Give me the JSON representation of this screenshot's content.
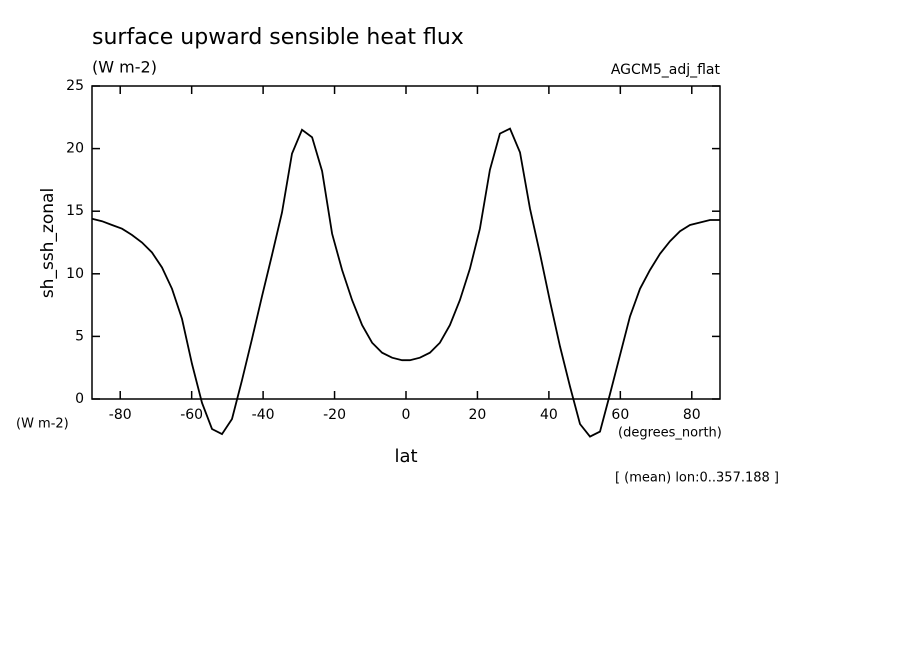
{
  "chart_data": {
    "type": "line",
    "title": "surface upward sensible heat flux",
    "subtitle": "(W m-2)",
    "annotation_right": "AGCM5_adj_flat",
    "y_label": "sh_ssh_zonal",
    "y_units": "(W m-2)",
    "x_label": "lat",
    "x_units": "(degrees_north)",
    "footnote": "[ (mean) lon:0..357.188 ]",
    "x": [
      -87.9,
      -85.1,
      -82.3,
      -79.5,
      -76.7,
      -73.9,
      -71.1,
      -68.3,
      -65.5,
      -62.7,
      -59.9,
      -57.1,
      -54.3,
      -51.5,
      -48.7,
      -45.9,
      -43.1,
      -40.3,
      -37.5,
      -34.7,
      -31.9,
      -29.1,
      -26.3,
      -23.5,
      -20.7,
      -17.9,
      -15.1,
      -12.3,
      -9.5,
      -6.7,
      -3.9,
      -1.1,
      1.1,
      3.9,
      6.7,
      9.5,
      12.3,
      15.1,
      17.9,
      20.7,
      23.5,
      26.3,
      29.1,
      31.9,
      34.7,
      37.5,
      40.3,
      43.1,
      45.9,
      48.7,
      51.5,
      54.3,
      57.1,
      59.9,
      62.7,
      65.5,
      68.3,
      71.1,
      73.9,
      76.7,
      79.5,
      82.3,
      85.1,
      87.9
    ],
    "series": [
      {
        "name": "sh_ssh_zonal",
        "color": "#000000",
        "values": [
          14.4,
          14.2,
          13.9,
          13.6,
          13.1,
          12.5,
          11.7,
          10.5,
          8.8,
          6.4,
          2.8,
          -0.3,
          -2.4,
          -2.8,
          -1.6,
          1.5,
          4.8,
          8.2,
          11.5,
          14.9,
          19.6,
          21.5,
          20.9,
          18.2,
          13.2,
          10.3,
          7.9,
          5.9,
          4.5,
          3.7,
          3.3,
          3.1,
          3.1,
          3.3,
          3.7,
          4.5,
          5.9,
          7.9,
          10.4,
          13.6,
          18.3,
          21.2,
          21.6,
          19.7,
          15.2,
          11.6,
          7.8,
          4.2,
          1.0,
          -2.0,
          -3.0,
          -2.6,
          0.4,
          3.5,
          6.6,
          8.8,
          10.3,
          11.6,
          12.6,
          13.4,
          13.9,
          14.1,
          14.3,
          14.3
        ]
      }
    ],
    "xlim": [
      -87.9,
      87.9
    ],
    "ylim": [
      0,
      25
    ],
    "xticks": [
      -80,
      -60,
      -40,
      -20,
      0,
      20,
      40,
      60,
      80
    ],
    "yticks": [
      0,
      5,
      10,
      15,
      20,
      25
    ],
    "grid": false
  }
}
